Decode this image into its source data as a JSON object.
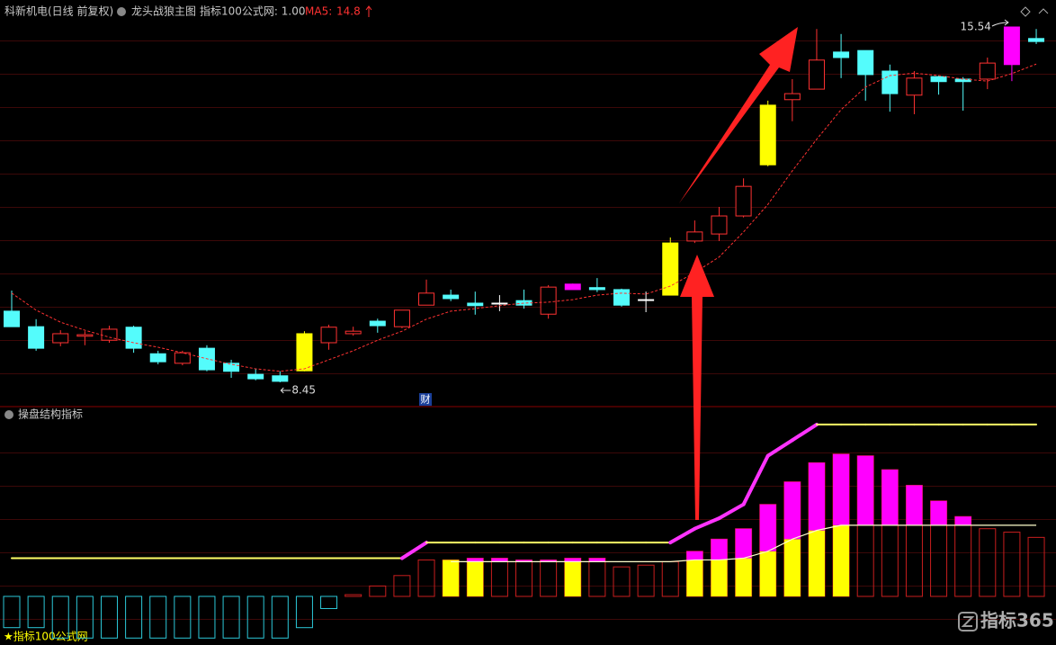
{
  "chart_data": [
    {
      "type": "candlestick",
      "title": "科新机电(日线 前复权)",
      "subtitle": "龙头战狼主图",
      "annotation": "指标100公式网: 1.00",
      "ma_label": "MA5:",
      "badge": "财",
      "watermark": "指标365",
      "footer": "★指标100公式网",
      "up_color": "#ff3232",
      "ma_color": "#ff3232",
      "open": [
        9.87,
        9.56,
        9.24,
        9.37,
        9.29,
        9.55,
        9.02,
        8.83,
        9.13,
        8.83,
        8.61,
        8.58,
        8.68,
        9.24,
        9.42,
        9.67,
        9.56,
        9.99,
        10.19,
        10.03,
        10.03,
        10.08,
        9.81,
        10.3,
        10.34,
        10.3,
        10.1,
        10.19,
        11.27,
        11.41,
        11.77,
        12.79,
        14.09,
        14.3,
        15.04,
        15.07,
        14.66,
        14.18,
        14.55,
        14.5,
        14.5,
        14.79,
        15.31
      ],
      "high": [
        10.28,
        9.71,
        9.49,
        9.47,
        9.58,
        9.58,
        9.08,
        9.08,
        9.19,
        8.9,
        8.72,
        8.67,
        9.47,
        9.6,
        9.56,
        9.72,
        9.89,
        10.5,
        10.3,
        10.26,
        10.19,
        10.3,
        10.39,
        10.42,
        10.53,
        10.32,
        10.26,
        11.34,
        11.68,
        11.95,
        12.52,
        14.07,
        14.5,
        15.5,
        15.4,
        15.07,
        14.79,
        14.66,
        14.57,
        14.54,
        14.93,
        15.54,
        15.5
      ],
      "low": [
        9.56,
        9.08,
        9.17,
        9.19,
        9.24,
        9.04,
        8.81,
        8.79,
        8.67,
        8.54,
        8.49,
        8.45,
        8.67,
        9.1,
        9.38,
        9.44,
        9.53,
        9.99,
        10.07,
        9.8,
        9.87,
        9.92,
        9.72,
        10.3,
        10.25,
        9.96,
        9.85,
        10.19,
        11.23,
        11.27,
        11.74,
        12.76,
        13.66,
        14.3,
        14.52,
        14.07,
        13.85,
        13.8,
        14.19,
        13.87,
        14.3,
        14.46,
        15.2
      ],
      "close": [
        9.56,
        9.13,
        9.42,
        9.4,
        9.51,
        9.13,
        8.86,
        9.04,
        8.7,
        8.67,
        8.52,
        8.47,
        9.42,
        9.55,
        9.47,
        9.58,
        9.89,
        10.23,
        10.12,
        9.98,
        10.03,
        9.99,
        10.35,
        10.41,
        10.3,
        9.99,
        10.1,
        11.23,
        11.45,
        11.77,
        12.36,
        13.98,
        14.21,
        14.88,
        14.93,
        14.59,
        14.21,
        14.52,
        14.45,
        14.45,
        14.82,
        15.54,
        15.25
      ],
      "ma5": [
        10.23,
        9.89,
        9.65,
        9.49,
        9.35,
        9.24,
        9.15,
        9.04,
        8.92,
        8.81,
        8.72,
        8.67,
        8.72,
        8.9,
        9.08,
        9.29,
        9.47,
        9.71,
        9.87,
        9.92,
        9.98,
        10.03,
        10.05,
        10.1,
        10.19,
        10.23,
        10.21,
        10.37,
        10.64,
        10.95,
        11.45,
        12.0,
        12.67,
        13.3,
        13.89,
        14.34,
        14.57,
        14.62,
        14.57,
        14.5,
        14.46,
        14.61,
        14.8
      ],
      "colors": [
        "#54fcfc",
        "#54fcfc",
        "#ff3232",
        "#ff3232",
        "#ff3232",
        "#54fcfc",
        "#54fcfc",
        "#ff3232",
        "#54fcfc",
        "#54fcfc",
        "#54fcfc",
        "#54fcfc",
        "#ffff00",
        "#ff3232",
        "#ff3232",
        "#54fcfc",
        "#ff3232",
        "#ff3232",
        "#54fcfc",
        "#54fcfc",
        "#ffffff",
        "#54fcfc",
        "#ff3232",
        "#ff00ff",
        "#54fcfc",
        "#54fcfc",
        "#ffffff",
        "#ffff00",
        "#ff3232",
        "#ff3232",
        "#ff3232",
        "#ffff00",
        "#ff3232",
        "#ff3232",
        "#54fcfc",
        "#54fcfc",
        "#54fcfc",
        "#ff3232",
        "#54fcfc",
        "#54fcfc",
        "#ff3232",
        "#ff00ff",
        "#54fcfc"
      ]
    },
    {
      "type": "indicator",
      "title": "操盘结构指标",
      "ylim": [
        -28,
        100
      ],
      "up_color": "#c81e1e",
      "down_color": "#2cc8d8",
      "yellow_color": "#ffff00",
      "magenta_color": "#ff00ff",
      "line_color": "#ffff66",
      "rise_color": "#ff33ff",
      "line2_color": "#ffffcc",
      "bars": [
        -18,
        -18,
        -24,
        -24,
        -24,
        -24,
        -24,
        -24,
        -24,
        -24,
        -24,
        -24,
        -18,
        -7,
        1,
        6,
        12,
        21,
        21,
        22,
        22,
        21,
        21,
        22,
        22,
        17,
        18,
        20,
        26,
        33,
        39,
        53,
        66,
        77,
        82,
        81,
        73,
        64,
        55,
        46,
        39,
        37,
        34
      ],
      "yellow": [
        null,
        null,
        null,
        null,
        null,
        null,
        null,
        null,
        null,
        null,
        null,
        null,
        null,
        null,
        null,
        null,
        null,
        null,
        21,
        21,
        null,
        null,
        null,
        21,
        null,
        null,
        null,
        null,
        21,
        21,
        22,
        26,
        33,
        38,
        41,
        null,
        null,
        null,
        null,
        null,
        null,
        null,
        null
      ],
      "magenta": [
        null,
        null,
        null,
        null,
        null,
        null,
        null,
        null,
        null,
        null,
        null,
        null,
        null,
        null,
        null,
        null,
        null,
        null,
        null,
        22,
        22,
        21,
        21,
        22,
        22,
        null,
        null,
        null,
        26,
        33,
        39,
        53,
        66,
        77,
        82,
        81,
        73,
        64,
        55,
        46,
        null,
        null,
        null
      ],
      "line2": [
        null,
        null,
        null,
        null,
        null,
        null,
        null,
        null,
        null,
        null,
        null,
        null,
        null,
        null,
        null,
        null,
        null,
        null,
        20,
        20,
        20,
        20,
        20,
        20,
        20,
        20,
        20,
        20,
        21,
        21,
        22,
        26,
        33,
        38,
        41,
        41,
        41,
        41,
        41,
        41,
        41,
        41,
        41
      ],
      "main": [
        22,
        22,
        22,
        22,
        22,
        22,
        22,
        22,
        22,
        22,
        22,
        22,
        22,
        22,
        22,
        22,
        22,
        31,
        31,
        31,
        31,
        31,
        31,
        31,
        31,
        31,
        31,
        31,
        39,
        45,
        53,
        81,
        90,
        99,
        99,
        99,
        99,
        99,
        99,
        99,
        99,
        99,
        99
      ]
    }
  ]
}
